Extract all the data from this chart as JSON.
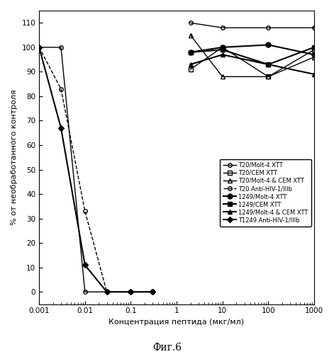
{
  "xlabel": "Концентрация пептида (мкг/мл)",
  "ylabel": "% от необработанного контроля",
  "fig_caption": "Фиг.6",
  "ylim": [
    -5,
    115
  ],
  "yticks": [
    0,
    10,
    20,
    30,
    40,
    50,
    60,
    70,
    80,
    90,
    100,
    110
  ],
  "series": [
    {
      "label": "T20/Molt-4 XTT",
      "x": [
        0.001,
        0.003,
        0.01,
        0.03,
        0.1,
        0.3,
        null,
        2,
        10,
        100,
        1000
      ],
      "y": [
        100,
        100,
        0,
        0,
        0,
        0,
        null,
        110,
        108,
        108,
        108
      ],
      "marker": "o",
      "linestyle": "-",
      "color": "#000000",
      "fillstyle": "none",
      "markersize": 4,
      "linewidth": 1
    },
    {
      "label": "T20/CEM XTT",
      "x": [
        2,
        10,
        100,
        1000
      ],
      "y": [
        91,
        100,
        88,
        99
      ],
      "marker": "s",
      "linestyle": "-",
      "color": "#000000",
      "fillstyle": "none",
      "markersize": 4,
      "linewidth": 1
    },
    {
      "label": "T20/Molt-4 & CEM XTT",
      "x": [
        2,
        10,
        100,
        1000
      ],
      "y": [
        105,
        88,
        88,
        96
      ],
      "marker": "^",
      "linestyle": "-",
      "color": "#000000",
      "fillstyle": "none",
      "markersize": 4,
      "linewidth": 1
    },
    {
      "label": "T20 Anti-HIV-1/IIIb",
      "x": [
        0.001,
        0.003,
        0.01,
        0.03,
        0.1,
        0.3
      ],
      "y": [
        100,
        83,
        33,
        0,
        0,
        0
      ],
      "marker": "o",
      "linestyle": "--",
      "color": "#000000",
      "fillstyle": "none",
      "markersize": 4,
      "linewidth": 1
    },
    {
      "label": "1249/Molt-4 XTT",
      "x": [
        2,
        10,
        100,
        1000
      ],
      "y": [
        98,
        100,
        101,
        97
      ],
      "marker": "o",
      "linestyle": "-",
      "color": "#000000",
      "fillstyle": "full",
      "markersize": 5,
      "linewidth": 1.5
    },
    {
      "label": "1249/CEM XTT",
      "x": [
        2,
        10,
        100,
        1000
      ],
      "y": [
        98,
        99,
        93,
        100
      ],
      "marker": "s",
      "linestyle": "-",
      "color": "#000000",
      "fillstyle": "full",
      "markersize": 5,
      "linewidth": 1.5
    },
    {
      "label": "1249/Molt-4 & CEM XTT",
      "x": [
        2,
        10,
        100,
        1000
      ],
      "y": [
        93,
        97,
        93,
        89
      ],
      "marker": "^",
      "linestyle": "-",
      "color": "#000000",
      "fillstyle": "full",
      "markersize": 5,
      "linewidth": 1.5
    },
    {
      "label": "T1249 Anti-HIV-1/IIIb",
      "x": [
        0.001,
        0.003,
        0.01,
        0.03,
        0.1,
        0.3
      ],
      "y": [
        100,
        67,
        11,
        0,
        0,
        0
      ],
      "marker": "D",
      "linestyle": "-",
      "color": "#000000",
      "fillstyle": "full",
      "markersize": 4,
      "linewidth": 1.5
    }
  ]
}
